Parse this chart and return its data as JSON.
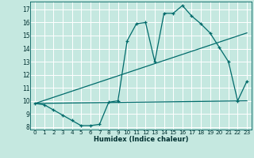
{
  "xlabel": "Humidex (Indice chaleur)",
  "bg_color": "#c5e8e0",
  "grid_color": "#ffffff",
  "line_color": "#006b6b",
  "xlim": [
    -0.5,
    23.5
  ],
  "ylim": [
    7.8,
    17.6
  ],
  "xticks": [
    0,
    1,
    2,
    3,
    4,
    5,
    6,
    7,
    8,
    9,
    10,
    11,
    12,
    13,
    14,
    15,
    16,
    17,
    18,
    19,
    20,
    21,
    22,
    23
  ],
  "yticks": [
    8,
    9,
    10,
    11,
    12,
    13,
    14,
    15,
    16,
    17
  ],
  "line1_x": [
    0,
    1,
    2,
    3,
    4,
    5,
    6,
    7,
    8,
    9,
    10,
    11,
    12,
    13,
    14,
    15,
    16,
    17,
    18,
    19,
    20,
    21,
    22,
    23
  ],
  "line1_y": [
    9.8,
    9.7,
    9.3,
    8.9,
    8.5,
    8.1,
    8.1,
    8.2,
    9.9,
    10.0,
    14.6,
    15.9,
    16.0,
    13.0,
    16.7,
    16.7,
    17.3,
    16.5,
    15.9,
    15.2,
    14.1,
    13.0,
    10.0,
    11.5
  ],
  "line2_x": [
    0,
    23
  ],
  "line2_y": [
    9.8,
    10.0
  ],
  "line3_x": [
    0,
    23
  ],
  "line3_y": [
    9.8,
    15.2
  ]
}
